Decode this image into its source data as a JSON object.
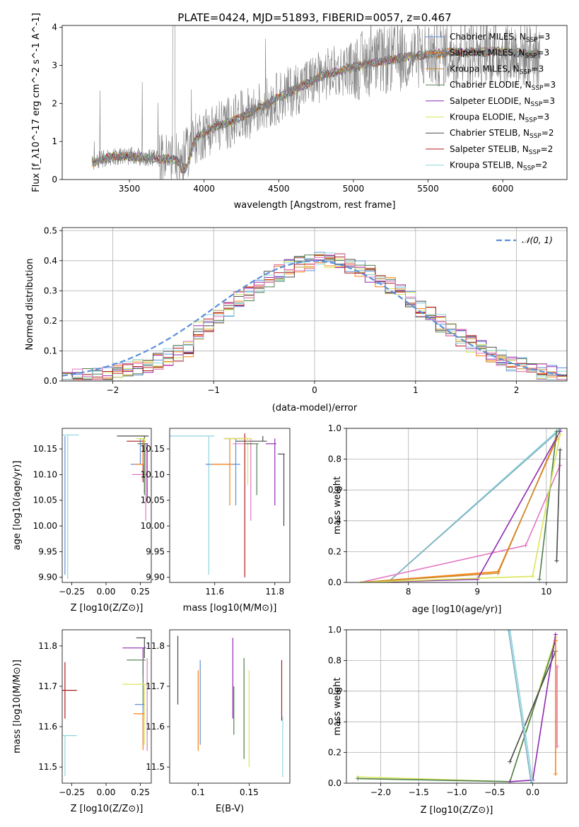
{
  "figure": {
    "title": "PLATE=0424, MJD=51893, FIBERID=0057, z=0.467"
  },
  "chart_data": [
    {
      "id": "spectrum",
      "type": "line",
      "xlabel": "wavelength [Angstrom, rest frame]",
      "ylabel": "Flux [f_λ10^-17 erg cm^-2 s^-1 A^-1]",
      "xlim": [
        3050,
        6430
      ],
      "ylim": [
        0,
        4.05
      ],
      "xticks": [
        3500,
        4000,
        4500,
        5000,
        5500,
        6000
      ],
      "yticks": [
        0,
        1,
        2,
        3,
        4
      ],
      "legend_position": "upper-right",
      "data_series": {
        "name": "data",
        "color": "#7f7f7f"
      },
      "legend": [
        {
          "label": "Chabrier MILES, N",
          "sub": "SSP",
          "suffix": "=3",
          "color": "#5b8fd9"
        },
        {
          "label": "Salpeter MILES, N",
          "sub": "SSP",
          "suffix": "=3",
          "color": "#ff7f0e"
        },
        {
          "label": "Kroupa MILES, N",
          "sub": "SSP",
          "suffix": "=3",
          "color": "#c98a2e"
        },
        {
          "label": "Chabrier ELODIE, N",
          "sub": "SSP",
          "suffix": "=3",
          "color": "#4f7f4f"
        },
        {
          "label": "Salpeter ELODIE, N",
          "sub": "SSP",
          "suffix": "=3",
          "color": "#8e2bb0"
        },
        {
          "label": "Kroupa ELODIE, N",
          "sub": "SSP",
          "suffix": "=3",
          "color": "#d9e65a"
        },
        {
          "label": "Chabrier STELIB, N",
          "sub": "SSP",
          "suffix": "=2",
          "color": "#4a4a4a"
        },
        {
          "label": "Salpeter STELIB, N",
          "sub": "SSP",
          "suffix": "=2",
          "color": "#b01c1c"
        },
        {
          "label": "Kroupa STELIB, N",
          "sub": "SSP",
          "suffix": "=2",
          "color": "#8fd6dd"
        }
      ],
      "continuum_x": [
        3250,
        3400,
        3550,
        3700,
        3850,
        3950,
        4050,
        4200,
        4350,
        4500,
        4650,
        4800,
        4950,
        5100,
        5250,
        5400,
        5550,
        5700,
        5850,
        6000,
        6150,
        6250
      ],
      "continuum_y": [
        0.45,
        0.62,
        0.6,
        0.55,
        0.5,
        1.1,
        1.35,
        1.55,
        1.85,
        2.15,
        2.45,
        2.75,
        2.9,
        3.05,
        3.15,
        3.25,
        3.3,
        3.35,
        3.35,
        3.35,
        3.3,
        3.3
      ]
    },
    {
      "id": "residuals",
      "type": "line",
      "xlabel": "(data-model)/error",
      "ylabel": "Normed distribution",
      "xlim": [
        -2.5,
        2.5
      ],
      "ylim": [
        0,
        0.51
      ],
      "xticks": [
        -2,
        -1,
        0,
        1,
        2
      ],
      "yticks": [
        0.0,
        0.1,
        0.2,
        0.3,
        0.4,
        0.5
      ],
      "grid": true,
      "legend_position": "upper-right",
      "gaussian": {
        "label": "𝒩(0, 1)",
        "mean": 0,
        "sigma": 1,
        "color": "#5b8fd9"
      },
      "hist_colors": [
        "#5b8fd9",
        "#ff7f0e",
        "#c98a2e",
        "#4f7f4f",
        "#8e2bb0",
        "#d9e65a",
        "#4a4a4a",
        "#b01c1c",
        "#8fd6dd",
        "#e377c2"
      ]
    },
    {
      "id": "age_vs_Z",
      "type": "scatter",
      "xlabel": "Z [log10(Z/Z⊙)]",
      "ylabel": "age  [log10(age/yr)]",
      "xlim": [
        -0.32,
        0.33
      ],
      "ylim": [
        9.89,
        10.19
      ],
      "xticks": [
        -0.25,
        0.0,
        0.25
      ],
      "xtick_labels": [
        "−0.25",
        "0.00",
        "0.25"
      ],
      "yticks": [
        9.9,
        9.95,
        10.0,
        10.05,
        10.1,
        10.15
      ],
      "points": [
        {
          "x": 0.28,
          "y": 10.175,
          "xerr": 0.2,
          "yerr_lo": 0.11,
          "yerr_hi": 0.0,
          "color": "#4a4a4a"
        },
        {
          "x": 0.27,
          "y": 10.165,
          "xerr": 0.12,
          "yerr_lo": 0.08,
          "yerr_hi": 0.0,
          "color": "#b01c1c"
        },
        {
          "x": 0.25,
          "y": 10.12,
          "xerr": 0.07,
          "yerr_lo": 0.0,
          "yerr_hi": 0.05,
          "color": "#5b8fd9"
        },
        {
          "x": 0.27,
          "y": 10.12,
          "xerr": 0.06,
          "yerr_lo": 0.0,
          "yerr_hi": 0.05,
          "color": "#ff7f0e"
        },
        {
          "x": 0.29,
          "y": 10.1,
          "xerr": 0.1,
          "yerr_lo": 0.09,
          "yerr_hi": 0.06,
          "color": "#e377c2"
        },
        {
          "x": 0.3,
          "y": 10.16,
          "xerr": 0.05,
          "yerr_lo": 0.11,
          "yerr_hi": 0.0,
          "color": "#8e2bb0"
        },
        {
          "x": 0.28,
          "y": 10.17,
          "xerr": 0.06,
          "yerr_lo": 0.1,
          "yerr_hi": 0.0,
          "color": "#d9e65a"
        },
        {
          "x": 0.28,
          "y": 10.16,
          "xerr": 0.05,
          "yerr_lo": 0.1,
          "yerr_hi": 0.0,
          "color": "#4f7f4f"
        },
        {
          "x": -0.3,
          "y": 10.175,
          "xerr": 0.0,
          "yerr_lo": 0.27,
          "yerr_hi": 0.0,
          "color": "#5b8fd9"
        },
        {
          "x": -0.28,
          "y": 10.177,
          "xerr": 0.55,
          "yerr_lo": 0.28,
          "yerr_hi": 0.0,
          "color": "#8fd6dd"
        }
      ]
    },
    {
      "id": "age_vs_mass",
      "type": "scatter",
      "xlabel": "mass [log10(M/M⊙)]",
      "ylabel": "",
      "xlim": [
        11.45,
        11.85
      ],
      "ylim": [
        9.89,
        10.19
      ],
      "xticks": [
        11.6,
        11.8
      ],
      "yticks": [
        9.9,
        9.95,
        10.0,
        10.05,
        10.1,
        10.15
      ],
      "points": [
        {
          "x": 11.7,
          "y": 10.17,
          "xerr": 0.07,
          "yerr_lo": 0.27,
          "yerr_hi": 0.01,
          "color": "#b01c1c"
        },
        {
          "x": 11.76,
          "y": 10.165,
          "xerr": 0.09,
          "yerr_lo": 0.0,
          "yerr_hi": 0.01,
          "color": "#4a4a4a"
        },
        {
          "x": 11.58,
          "y": 10.175,
          "xerr": 0.13,
          "yerr_lo": 0.27,
          "yerr_hi": 0.0,
          "color": "#8fd6dd"
        },
        {
          "x": 11.67,
          "y": 10.12,
          "xerr": 0.1,
          "yerr_lo": 0.08,
          "yerr_hi": 0.05,
          "color": "#5b8fd9"
        },
        {
          "x": 11.65,
          "y": 10.12,
          "xerr": 0.06,
          "yerr_lo": 0.08,
          "yerr_hi": 0.05,
          "color": "#ff7f0e"
        },
        {
          "x": 11.72,
          "y": 10.16,
          "xerr": 0.06,
          "yerr_lo": 0.15,
          "yerr_hi": 0.01,
          "color": "#e377c2"
        },
        {
          "x": 11.8,
          "y": 10.16,
          "xerr": 0.03,
          "yerr_lo": 0.12,
          "yerr_hi": 0.01,
          "color": "#8e2bb0"
        },
        {
          "x": 11.71,
          "y": 10.17,
          "xerr": 0.08,
          "yerr_lo": 0.09,
          "yerr_hi": 0.0,
          "color": "#d9e65a"
        },
        {
          "x": 11.74,
          "y": 10.16,
          "xerr": 0.04,
          "yerr_lo": 0.1,
          "yerr_hi": 0.0,
          "color": "#4f7f4f"
        },
        {
          "x": 11.83,
          "y": 10.14,
          "xerr": 0.02,
          "yerr_lo": 0.14,
          "yerr_hi": 0.0,
          "color": "#4a4a4a"
        }
      ]
    },
    {
      "id": "weight_vs_age",
      "type": "line",
      "xlabel": "age  [log10(age/yr)]",
      "ylabel": "mass weight",
      "xlim": [
        7.1,
        10.3
      ],
      "ylim": [
        0,
        1.0
      ],
      "xticks": [
        8,
        9,
        10
      ],
      "yticks": [
        0.0,
        0.2,
        0.4,
        0.6,
        0.8,
        1.0
      ],
      "grid": true,
      "series": [
        {
          "color": "#8fd6dd",
          "x": [
            7.7,
            10.2
          ],
          "y": [
            0.0,
            1.0
          ]
        },
        {
          "color": "#7fb0c0",
          "x": [
            7.7,
            10.2
          ],
          "y": [
            0.0,
            0.99
          ]
        },
        {
          "color": "#e377c2",
          "x": [
            7.3,
            9.7,
            10.2
          ],
          "y": [
            0.0,
            0.24,
            0.76
          ]
        },
        {
          "color": "#ff7f0e",
          "x": [
            7.3,
            9.3,
            10.15
          ],
          "y": [
            0.0,
            0.07,
            0.93
          ]
        },
        {
          "color": "#c98a2e",
          "x": [
            7.3,
            9.3,
            10.15
          ],
          "y": [
            0.0,
            0.06,
            0.94
          ]
        },
        {
          "color": "#8e2bb0",
          "x": [
            7.3,
            9.0,
            10.2
          ],
          "y": [
            0.0,
            0.02,
            0.98
          ]
        },
        {
          "color": "#4f7f4f",
          "x": [
            9.9,
            10.15
          ],
          "y": [
            0.02,
            0.98
          ]
        },
        {
          "color": "#d9e65a",
          "x": [
            7.3,
            9.8,
            10.2
          ],
          "y": [
            0.0,
            0.04,
            0.96
          ]
        },
        {
          "color": "#4a4a4a",
          "x": [
            10.15,
            10.2
          ],
          "y": [
            0.14,
            0.86
          ]
        }
      ]
    },
    {
      "id": "mass_vs_Z",
      "type": "scatter",
      "xlabel": "Z [log10(Z/Z⊙)]",
      "ylabel": "mass [log10(M/M⊙)]",
      "xlim": [
        -0.32,
        0.33
      ],
      "ylim": [
        11.46,
        11.84
      ],
      "xticks": [
        -0.25,
        0.0,
        0.25
      ],
      "xtick_labels": [
        "−0.25",
        "0.00",
        "0.25"
      ],
      "yticks": [
        11.5,
        11.6,
        11.7,
        11.8
      ],
      "points": [
        {
          "x": 0.28,
          "y": 11.82,
          "xerr": 0.06,
          "yerr_lo": 0.05,
          "yerr_hi": 0.0,
          "color": "#4a4a4a"
        },
        {
          "x": 0.27,
          "y": 11.795,
          "xerr": 0.15,
          "yerr_lo": 0.07,
          "yerr_hi": 0.0,
          "color": "#8e2bb0"
        },
        {
          "x": 0.27,
          "y": 11.765,
          "xerr": 0.12,
          "yerr_lo": 0.12,
          "yerr_hi": 0.0,
          "color": "#4f7f4f"
        },
        {
          "x": 0.28,
          "y": 11.705,
          "xerr": 0.16,
          "yerr_lo": 0.15,
          "yerr_hi": 0.0,
          "color": "#d9e65a"
        },
        {
          "x": -0.3,
          "y": 11.69,
          "xerr": 0.58,
          "yerr_lo": 0.07,
          "yerr_hi": 0.07,
          "color": "#b01c1c"
        },
        {
          "x": 0.27,
          "y": 11.655,
          "xerr": 0.06,
          "yerr_lo": 0.1,
          "yerr_hi": 0.0,
          "color": "#5b8fd9"
        },
        {
          "x": 0.27,
          "y": 11.632,
          "xerr": 0.07,
          "yerr_lo": 0.09,
          "yerr_hi": 0.0,
          "color": "#ff7f0e"
        },
        {
          "x": -0.3,
          "y": 11.578,
          "xerr": 0.58,
          "yerr_lo": 0.1,
          "yerr_hi": 0.0,
          "color": "#8fd6dd"
        },
        {
          "x": 0.3,
          "y": 11.7,
          "xerr": 0.0,
          "yerr_lo": 0.16,
          "yerr_hi": 0.07,
          "color": "#e377c2"
        }
      ]
    },
    {
      "id": "mass_vs_ebv",
      "type": "scatter",
      "xlabel": "E(B-V)",
      "ylabel": "",
      "xlim": [
        0.072,
        0.19
      ],
      "ylim": [
        11.46,
        11.84
      ],
      "xticks": [
        0.1,
        0.15
      ],
      "yticks": [
        11.5,
        11.6,
        11.7,
        11.8
      ],
      "points": [
        {
          "x": 0.08,
          "y": 11.74,
          "yerr": 0.085,
          "color": "#4a4a4a"
        },
        {
          "x": 0.1,
          "y": 11.64,
          "yerr": 0.1,
          "color": "#ff7f0e"
        },
        {
          "x": 0.102,
          "y": 11.66,
          "yerr": 0.105,
          "color": "#5b8fd9"
        },
        {
          "x": 0.134,
          "y": 11.72,
          "yerr": 0.1,
          "color": "#8e2bb0"
        },
        {
          "x": 0.135,
          "y": 11.64,
          "yerr": 0.06,
          "color": "#4f7f4f"
        },
        {
          "x": 0.145,
          "y": 11.645,
          "yerr": 0.125,
          "color": "#4f7f4f"
        },
        {
          "x": 0.15,
          "y": 11.62,
          "yerr": 0.12,
          "color": "#d9e65a"
        },
        {
          "x": 0.182,
          "y": 11.69,
          "yerr": 0.075,
          "color": "#b01c1c"
        },
        {
          "x": 0.183,
          "y": 11.55,
          "yerr": 0.075,
          "color": "#8fd6dd"
        }
      ]
    },
    {
      "id": "weight_vs_Z",
      "type": "line",
      "xlabel": "Z [log10(Z/Z⊙)]",
      "ylabel": "mass weight",
      "xlim": [
        -2.45,
        0.45
      ],
      "ylim": [
        0,
        1.0
      ],
      "xticks": [
        -2.0,
        -1.5,
        -1.0,
        -0.5,
        0.0
      ],
      "xtick_labels": [
        "−2.0",
        "−1.5",
        "−1.0",
        "−0.5",
        "0.0"
      ],
      "yticks": [
        0.0,
        0.2,
        0.4,
        0.6,
        0.8,
        1.0
      ],
      "grid": true,
      "series": [
        {
          "color": "#d9e65a",
          "x": [
            -2.3,
            -0.3,
            0.3
          ],
          "y": [
            0.04,
            0.01,
            0.95
          ]
        },
        {
          "color": "#4f7f4f",
          "x": [
            -2.3,
            -0.3,
            0.3
          ],
          "y": [
            0.03,
            0.01,
            0.93
          ]
        },
        {
          "color": "#4a4a4a",
          "x": [
            -0.3,
            0.3
          ],
          "y": [
            0.14,
            0.86
          ]
        },
        {
          "color": "#8e2bb0",
          "x": [
            -0.3,
            0.0,
            0.3
          ],
          "y": [
            0.01,
            0.02,
            0.97
          ]
        },
        {
          "color": "#8fd6dd",
          "x": [
            -0.3,
            0.0
          ],
          "y": [
            1.0,
            0.0
          ]
        },
        {
          "color": "#7fb0c0",
          "x": [
            -0.32,
            -0.02
          ],
          "y": [
            1.0,
            0.0
          ]
        },
        {
          "color": "#ff7f0e",
          "x": [
            0.3,
            0.3
          ],
          "y": [
            0.06,
            0.93
          ]
        },
        {
          "color": "#e377c2",
          "x": [
            0.32,
            0.32
          ],
          "y": [
            0.24,
            0.76
          ]
        }
      ]
    }
  ]
}
